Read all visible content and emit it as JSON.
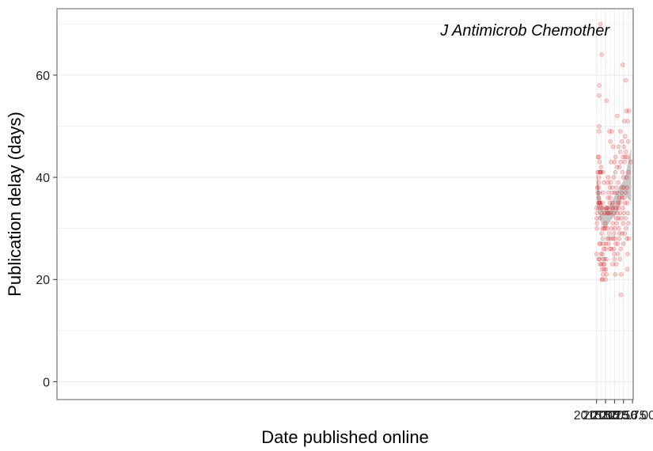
{
  "chart_data": {
    "type": "scatter",
    "title": "",
    "annotation": "J Antimicrob Chemother",
    "xlabel": "Date published online",
    "ylabel": "Publication delay (days)",
    "xlim": [
      1999.98,
      2016.02
    ],
    "ylim": [
      -3.5,
      73
    ],
    "xticks": [
      2015.0,
      2015.25,
      2015.5,
      2015.75,
      2016.0
    ],
    "xtick_labels": [
      "2015.00",
      "2015.25",
      "2015.50",
      "2015.75",
      "2016.00"
    ],
    "yticks": [
      0,
      20,
      40,
      60
    ],
    "ytick_labels": [
      "0",
      "20",
      "40",
      "60"
    ],
    "grid": true,
    "colors": {
      "points": "#e41a1c",
      "band": "#c8c8c8",
      "grid": "#ebebeb",
      "frame": "#8c8c8c"
    },
    "smooth": {
      "x": [
        2015.0,
        2015.05,
        2015.1,
        2015.15,
        2015.2,
        2015.25,
        2015.3,
        2015.35,
        2015.4,
        2015.45,
        2015.5,
        2015.55,
        2015.6,
        2015.65,
        2015.7,
        2015.75,
        2015.8,
        2015.85,
        2015.9,
        2015.96
      ],
      "lower": [
        34.0,
        33.0,
        31.6,
        30.7,
        30.2,
        30.0,
        30.4,
        31.0,
        31.6,
        32.0,
        32.3,
        32.8,
        33.5,
        34.6,
        35.6,
        36.3,
        36.5,
        36.0,
        35.6,
        35.3
      ],
      "upper": [
        41.3,
        38.6,
        36.5,
        35.0,
        34.2,
        34.0,
        34.2,
        34.5,
        35.0,
        35.6,
        36.3,
        37.0,
        37.6,
        38.3,
        38.8,
        39.3,
        40.3,
        42.0,
        43.9,
        46.0
      ]
    },
    "points": [
      [
        2015.0,
        25
      ],
      [
        2015.005,
        34
      ],
      [
        2015.005,
        32
      ],
      [
        2015.01,
        33
      ],
      [
        2015.01,
        31
      ],
      [
        2015.01,
        30
      ],
      [
        2015.02,
        38
      ],
      [
        2015.03,
        37
      ],
      [
        2015.03,
        41
      ],
      [
        2015.04,
        44
      ],
      [
        2015.05,
        35
      ],
      [
        2015.06,
        38
      ],
      [
        2015.06,
        39
      ],
      [
        2015.06,
        36
      ],
      [
        2015.06,
        40
      ],
      [
        2015.06,
        24
      ],
      [
        2015.07,
        44
      ],
      [
        2015.07,
        50
      ],
      [
        2015.07,
        49
      ],
      [
        2015.07,
        56
      ],
      [
        2015.075,
        58
      ],
      [
        2015.075,
        41
      ],
      [
        2015.08,
        37
      ],
      [
        2015.08,
        35
      ],
      [
        2015.08,
        43
      ],
      [
        2015.08,
        27
      ],
      [
        2015.08,
        24
      ],
      [
        2015.09,
        35
      ],
      [
        2015.09,
        32
      ],
      [
        2015.095,
        35
      ],
      [
        2015.1,
        41
      ],
      [
        2015.1,
        34
      ],
      [
        2015.1,
        23
      ],
      [
        2015.105,
        70
      ],
      [
        2015.11,
        41
      ],
      [
        2015.115,
        27
      ],
      [
        2015.12,
        42
      ],
      [
        2015.125,
        41
      ],
      [
        2015.13,
        25
      ],
      [
        2015.13,
        23
      ],
      [
        2015.14,
        29
      ],
      [
        2015.14,
        33
      ],
      [
        2015.145,
        64
      ],
      [
        2015.15,
        20
      ],
      [
        2015.15,
        34
      ],
      [
        2015.155,
        22
      ],
      [
        2015.16,
        25
      ],
      [
        2015.16,
        35
      ],
      [
        2015.165,
        20
      ],
      [
        2015.17,
        28
      ],
      [
        2015.17,
        30
      ],
      [
        2015.175,
        37
      ],
      [
        2015.18,
        41
      ],
      [
        2015.18,
        24
      ],
      [
        2015.185,
        21
      ],
      [
        2015.19,
        27
      ],
      [
        2015.195,
        23
      ],
      [
        2015.2,
        30
      ],
      [
        2015.2,
        26
      ],
      [
        2015.205,
        39
      ],
      [
        2015.21,
        23
      ],
      [
        2015.215,
        22
      ],
      [
        2015.22,
        24
      ],
      [
        2015.23,
        33
      ],
      [
        2015.24,
        30
      ],
      [
        2015.245,
        31
      ],
      [
        2015.25,
        26
      ],
      [
        2015.25,
        20
      ],
      [
        2015.255,
        22
      ],
      [
        2015.26,
        34
      ],
      [
        2015.265,
        27
      ],
      [
        2015.27,
        24
      ],
      [
        2015.275,
        21
      ],
      [
        2015.28,
        55
      ],
      [
        2015.29,
        34
      ],
      [
        2015.29,
        33
      ],
      [
        2015.3,
        34
      ],
      [
        2015.3,
        30
      ],
      [
        2015.305,
        28
      ],
      [
        2015.31,
        33
      ],
      [
        2015.315,
        39
      ],
      [
        2015.32,
        40
      ],
      [
        2015.325,
        36
      ],
      [
        2015.33,
        37
      ],
      [
        2015.335,
        27
      ],
      [
        2015.34,
        28
      ],
      [
        2015.35,
        29
      ],
      [
        2015.355,
        33
      ],
      [
        2015.36,
        49
      ],
      [
        2015.37,
        38
      ],
      [
        2015.37,
        35
      ],
      [
        2015.375,
        26
      ],
      [
        2015.38,
        36
      ],
      [
        2015.385,
        47
      ],
      [
        2015.39,
        39
      ],
      [
        2015.395,
        33
      ],
      [
        2015.4,
        28
      ],
      [
        2015.405,
        43
      ],
      [
        2015.41,
        26
      ],
      [
        2015.42,
        30
      ],
      [
        2015.425,
        49
      ],
      [
        2015.43,
        37
      ],
      [
        2015.43,
        34
      ],
      [
        2015.435,
        38
      ],
      [
        2015.44,
        35
      ],
      [
        2015.445,
        23
      ],
      [
        2015.45,
        31
      ],
      [
        2015.455,
        46
      ],
      [
        2015.46,
        34
      ],
      [
        2015.465,
        28
      ],
      [
        2015.47,
        33
      ],
      [
        2015.475,
        40
      ],
      [
        2015.48,
        29
      ],
      [
        2015.485,
        26
      ],
      [
        2015.49,
        25
      ],
      [
        2015.495,
        24
      ],
      [
        2015.5,
        37
      ],
      [
        2015.505,
        43
      ],
      [
        2015.51,
        30
      ],
      [
        2015.515,
        28
      ],
      [
        2015.52,
        21
      ],
      [
        2015.525,
        41
      ],
      [
        2015.53,
        44
      ],
      [
        2015.535,
        27
      ],
      [
        2015.54,
        34
      ],
      [
        2015.545,
        23
      ],
      [
        2015.55,
        32
      ],
      [
        2015.555,
        38
      ],
      [
        2015.56,
        31
      ],
      [
        2015.565,
        37
      ],
      [
        2015.57,
        42
      ],
      [
        2015.575,
        52
      ],
      [
        2015.58,
        33
      ],
      [
        2015.585,
        27
      ],
      [
        2015.59,
        35
      ],
      [
        2015.595,
        25
      ],
      [
        2015.6,
        39
      ],
      [
        2015.605,
        32
      ],
      [
        2015.61,
        46
      ],
      [
        2015.615,
        34
      ],
      [
        2015.62,
        30
      ],
      [
        2015.625,
        36
      ],
      [
        2015.63,
        28
      ],
      [
        2015.635,
        42
      ],
      [
        2015.64,
        29
      ],
      [
        2015.645,
        35
      ],
      [
        2015.65,
        24
      ],
      [
        2015.655,
        33
      ],
      [
        2015.66,
        45
      ],
      [
        2015.665,
        49
      ],
      [
        2015.67,
        43
      ],
      [
        2015.675,
        26
      ],
      [
        2015.68,
        17
      ],
      [
        2015.685,
        32
      ],
      [
        2015.69,
        21
      ],
      [
        2015.695,
        37
      ],
      [
        2015.7,
        47
      ],
      [
        2015.705,
        38
      ],
      [
        2015.71,
        29
      ],
      [
        2015.715,
        36
      ],
      [
        2015.72,
        41
      ],
      [
        2015.725,
        62
      ],
      [
        2015.73,
        34
      ],
      [
        2015.735,
        44
      ],
      [
        2015.74,
        31
      ],
      [
        2015.745,
        40
      ],
      [
        2015.75,
        27
      ],
      [
        2015.755,
        38
      ],
      [
        2015.76,
        46
      ],
      [
        2015.765,
        33
      ],
      [
        2015.77,
        51
      ],
      [
        2015.775,
        36
      ],
      [
        2015.78,
        43
      ],
      [
        2015.785,
        29
      ],
      [
        2015.79,
        35
      ],
      [
        2015.795,
        48
      ],
      [
        2015.8,
        44
      ],
      [
        2015.805,
        32
      ],
      [
        2015.81,
        59
      ],
      [
        2015.815,
        37
      ],
      [
        2015.82,
        45
      ],
      [
        2015.825,
        30
      ],
      [
        2015.83,
        53
      ],
      [
        2015.835,
        40
      ],
      [
        2015.84,
        28
      ],
      [
        2015.845,
        38
      ],
      [
        2015.85,
        22
      ],
      [
        2015.855,
        44
      ],
      [
        2015.86,
        35
      ],
      [
        2015.865,
        25
      ],
      [
        2015.87,
        51
      ],
      [
        2015.875,
        33
      ],
      [
        2015.88,
        47
      ],
      [
        2015.885,
        31
      ],
      [
        2015.89,
        41
      ],
      [
        2015.895,
        28
      ],
      [
        2015.9,
        53
      ],
      [
        2015.96,
        43
      ]
    ]
  }
}
